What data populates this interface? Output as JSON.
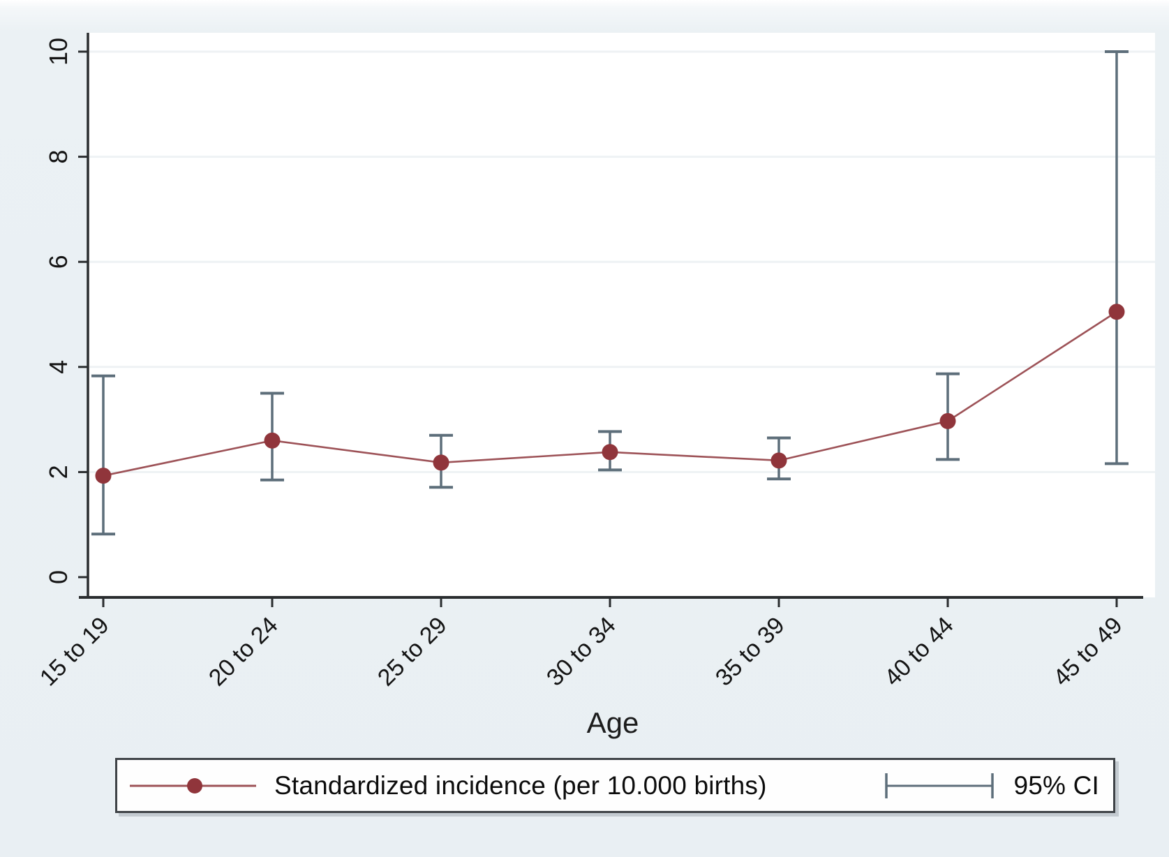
{
  "figure": {
    "kind": "stata-style line chart with 95% confidence interval error bars"
  },
  "colors": {
    "marker": "#90353b",
    "series_line": "#9d5257",
    "ci_bar": "#5d6e7a",
    "axis": "#2a2d2f",
    "tick_text": "#141414",
    "plot_bg": "#ffffff",
    "outer_bg": "#e9eff3",
    "gridline": "#eef2f4",
    "legend_border": "#3f4347"
  },
  "axis": {
    "x_title": "Age"
  },
  "legend": {
    "series_label": "Standardized incidence (per 10.000 births)",
    "ci_label": "95% CI"
  },
  "chart_data": {
    "type": "line",
    "title": "",
    "xlabel": "Age",
    "ylabel": "",
    "ylim": [
      0,
      10
    ],
    "yticks": [
      0,
      2,
      4,
      6,
      8,
      10
    ],
    "grid": true,
    "legend_position": "bottom",
    "categories": [
      "15 to 19",
      "20 to 24",
      "25 to 29",
      "30 to 34",
      "35 to 39",
      "40 to 44",
      "45 to 49"
    ],
    "series": [
      {
        "name": "Standardized incidence (per 10.000 births)",
        "values": [
          1.93,
          2.6,
          2.18,
          2.38,
          2.22,
          2.97,
          5.05
        ],
        "ci_low": [
          0.82,
          1.85,
          1.71,
          2.04,
          1.87,
          2.24,
          2.16
        ],
        "ci_high": [
          3.83,
          3.5,
          2.7,
          2.77,
          2.65,
          3.87,
          10.0
        ]
      }
    ]
  }
}
